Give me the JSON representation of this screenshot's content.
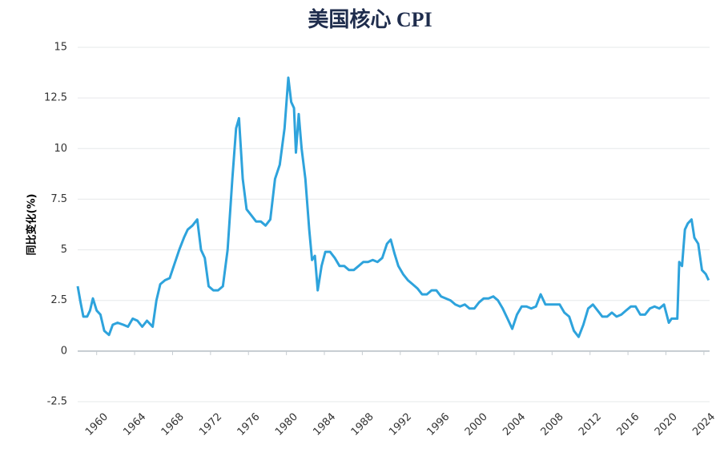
{
  "chart_data": {
    "type": "line",
    "title": "美国核心 CPI",
    "y_label": "同比变化(%)",
    "x": [
      1958.0,
      1958.3,
      1958.6,
      1959.0,
      1959.3,
      1959.6,
      1960.0,
      1960.4,
      1960.8,
      1961.3,
      1961.7,
      1962.2,
      1962.8,
      1963.3,
      1963.8,
      1964.3,
      1964.8,
      1965.3,
      1965.9,
      1966.3,
      1966.7,
      1967.2,
      1967.7,
      1968.2,
      1968.7,
      1969.2,
      1969.6,
      1970.1,
      1970.6,
      1971.0,
      1971.4,
      1971.8,
      1972.3,
      1972.8,
      1973.3,
      1973.8,
      1974.3,
      1974.7,
      1975.0,
      1975.4,
      1975.8,
      1976.3,
      1976.8,
      1977.3,
      1977.8,
      1978.3,
      1978.8,
      1979.3,
      1979.8,
      1980.2,
      1980.5,
      1980.8,
      1981.0,
      1981.3,
      1981.6,
      1982.0,
      1982.4,
      1982.7,
      1983.0,
      1983.3,
      1983.7,
      1984.1,
      1984.6,
      1985.1,
      1985.6,
      1986.1,
      1986.6,
      1987.1,
      1987.6,
      1988.1,
      1988.6,
      1989.1,
      1989.6,
      1990.1,
      1990.6,
      1991.0,
      1991.4,
      1991.8,
      1992.3,
      1992.8,
      1993.3,
      1993.8,
      1994.3,
      1994.8,
      1995.3,
      1995.8,
      1996.3,
      1996.8,
      1997.3,
      1997.8,
      1998.3,
      1998.8,
      1999.3,
      1999.8,
      2000.3,
      2000.8,
      2001.3,
      2001.8,
      2002.3,
      2002.8,
      2003.3,
      2003.8,
      2004.3,
      2004.8,
      2005.3,
      2005.8,
      2006.3,
      2006.8,
      2007.3,
      2007.8,
      2008.3,
      2008.8,
      2009.3,
      2009.8,
      2010.3,
      2010.8,
      2011.3,
      2011.8,
      2012.3,
      2012.8,
      2013.3,
      2013.8,
      2014.3,
      2014.8,
      2015.3,
      2015.8,
      2016.3,
      2016.8,
      2017.3,
      2017.8,
      2018.3,
      2018.8,
      2019.3,
      2019.8,
      2020.3,
      2020.6,
      2020.9,
      2021.2,
      2021.4,
      2021.7,
      2022.0,
      2022.3,
      2022.7,
      2023.0,
      2023.4,
      2023.8,
      2024.2,
      2024.5
    ],
    "series": [
      {
        "name": "核心 CPI",
        "color": "#2ea3dc",
        "values": [
          3.2,
          2.4,
          1.7,
          1.7,
          2.0,
          2.6,
          2.0,
          1.8,
          1.0,
          0.8,
          1.3,
          1.4,
          1.3,
          1.2,
          1.6,
          1.5,
          1.2,
          1.5,
          1.2,
          2.5,
          3.3,
          3.5,
          3.6,
          4.3,
          5.0,
          5.6,
          6.0,
          6.2,
          6.5,
          5.0,
          4.6,
          3.2,
          3.0,
          3.0,
          3.2,
          5.0,
          8.5,
          11.0,
          11.5,
          8.5,
          7.0,
          6.7,
          6.4,
          6.4,
          6.2,
          6.5,
          8.5,
          9.2,
          11.0,
          13.5,
          12.3,
          12.0,
          9.8,
          11.7,
          10.0,
          8.5,
          6.0,
          4.5,
          4.7,
          3.0,
          4.2,
          4.9,
          4.9,
          4.6,
          4.2,
          4.2,
          4.0,
          4.0,
          4.2,
          4.4,
          4.4,
          4.5,
          4.4,
          4.6,
          5.3,
          5.5,
          4.8,
          4.2,
          3.8,
          3.5,
          3.3,
          3.1,
          2.8,
          2.8,
          3.0,
          3.0,
          2.7,
          2.6,
          2.5,
          2.3,
          2.2,
          2.3,
          2.1,
          2.1,
          2.4,
          2.6,
          2.6,
          2.7,
          2.5,
          2.1,
          1.6,
          1.1,
          1.8,
          2.2,
          2.2,
          2.1,
          2.2,
          2.8,
          2.3,
          2.3,
          2.3,
          2.3,
          1.9,
          1.7,
          1.0,
          0.7,
          1.3,
          2.1,
          2.3,
          2.0,
          1.7,
          1.7,
          1.9,
          1.7,
          1.8,
          2.0,
          2.2,
          2.2,
          1.8,
          1.8,
          2.1,
          2.2,
          2.1,
          2.3,
          1.4,
          1.6,
          1.6,
          1.6,
          4.4,
          4.2,
          6.0,
          6.3,
          6.5,
          5.6,
          5.3,
          4.0,
          3.8,
          3.5
        ]
      }
    ],
    "xlim": [
      1958,
      2024.6
    ],
    "xticks": [
      1960,
      1964,
      1968,
      1972,
      1976,
      1980,
      1984,
      1988,
      1992,
      1996,
      2000,
      2004,
      2008,
      2012,
      2016,
      2020,
      2024
    ],
    "ylim": [
      -2.5,
      15
    ],
    "yticks": [
      -2.5,
      0,
      2.5,
      5,
      7.5,
      10,
      12.5,
      15
    ],
    "grid": true
  }
}
